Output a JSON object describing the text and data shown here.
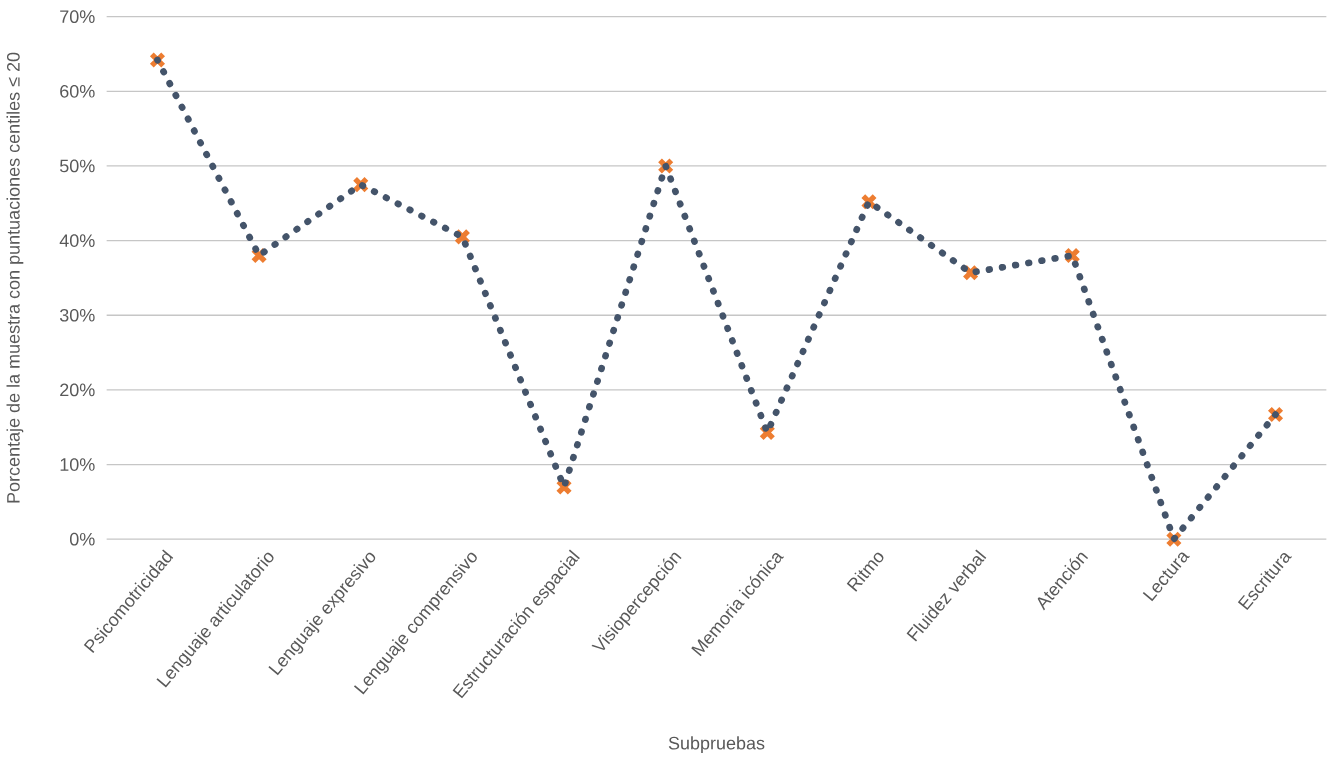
{
  "chart_data": {
    "type": "line",
    "xlabel": "Subpruebas",
    "ylabel": "Porcentaje de la muestra con puntuaciones centiles ≤ 20",
    "categories": [
      "Psicomotricidad",
      "Lenguaje articulatorio",
      "Lenguaje expresivo",
      "Lenguaje comprensivo",
      "Estructuración espacial",
      "Visiopercepción",
      "Memoria icónica",
      "Ritmo",
      "Fluidez verbal",
      "Atención",
      "Lectura",
      "Escritura"
    ],
    "series": [
      {
        "type": "scatter",
        "color": "#ed7d31",
        "marker": "cross",
        "values": [
          64.2,
          38,
          47.5,
          40.5,
          7,
          50,
          14.3,
          45.2,
          35.7,
          38,
          0,
          16.7
        ]
      },
      {
        "type": "line",
        "color": "#44546a",
        "line_style": "dotted",
        "marker": "none",
        "values": [
          64.2,
          38,
          47.5,
          40.5,
          7,
          50,
          14.3,
          45.2,
          35.7,
          38,
          0,
          16.7
        ]
      }
    ],
    "ylim": [
      0,
      70
    ],
    "yticks": [
      {
        "value": 0,
        "label": "0%"
      },
      {
        "value": 10,
        "label": "10%"
      },
      {
        "value": 20,
        "label": "20%"
      },
      {
        "value": 30,
        "label": "30%"
      },
      {
        "value": 40,
        "label": "40%"
      },
      {
        "value": 50,
        "label": "50%"
      },
      {
        "value": 60,
        "label": "60%"
      },
      {
        "value": 70,
        "label": "70%"
      }
    ],
    "grid": "y",
    "legend": false
  }
}
